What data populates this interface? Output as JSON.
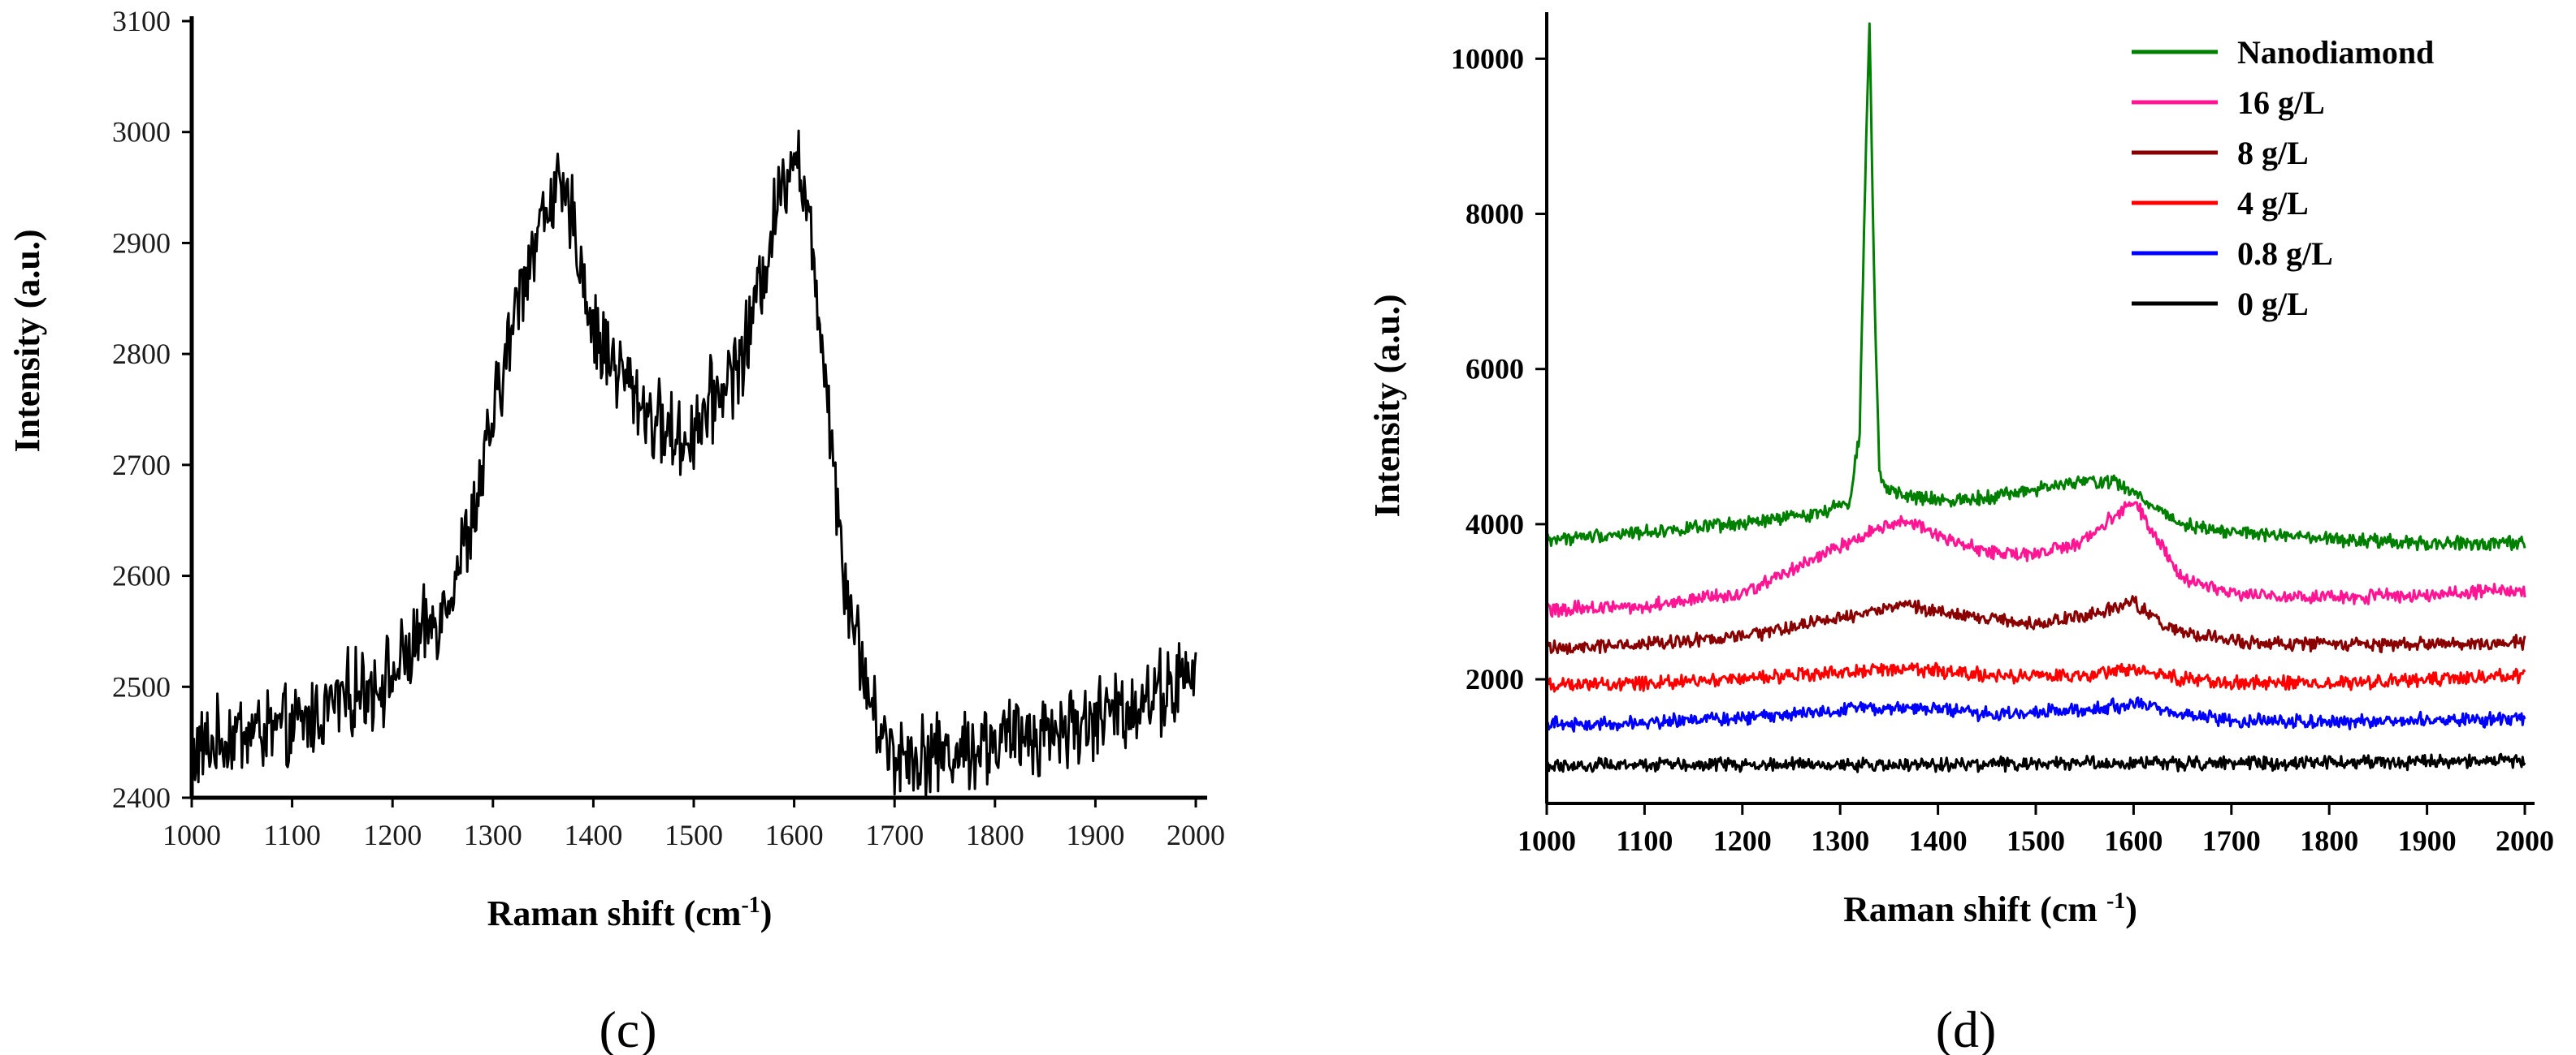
{
  "chart_data": [
    {
      "type": "line",
      "panel_label": "(c)",
      "xlabel_main": "Raman  shift (cm",
      "xlabel_sup": "-1",
      "xlabel_close": ")",
      "ylabel": "Intensity (a.u.)",
      "xlim": [
        1000,
        2000
      ],
      "ylim": [
        2400,
        3100
      ],
      "xticks": [
        1000,
        1100,
        1200,
        1300,
        1400,
        1500,
        1600,
        1700,
        1800,
        1900,
        2000
      ],
      "yticks": [
        2400,
        2500,
        2600,
        2700,
        2800,
        2900,
        3000,
        3100
      ],
      "series": [
        {
          "name": "spectrum",
          "color": "#000000",
          "x": [
            1000,
            1050,
            1100,
            1150,
            1200,
            1250,
            1280,
            1300,
            1330,
            1360,
            1380,
            1400,
            1430,
            1460,
            1490,
            1520,
            1550,
            1570,
            1590,
            1600,
            1610,
            1630,
            1650,
            1680,
            1700,
            1750,
            1800,
            1850,
            1900,
            1950,
            2000
          ],
          "y": [
            2440,
            2460,
            2460,
            2490,
            2510,
            2570,
            2650,
            2740,
            2870,
            2950,
            2920,
            2820,
            2780,
            2740,
            2720,
            2760,
            2800,
            2880,
            2960,
            2990,
            2950,
            2800,
            2600,
            2470,
            2440,
            2440,
            2450,
            2460,
            2470,
            2490,
            2510
          ]
        }
      ]
    },
    {
      "type": "line",
      "panel_label": "(d)",
      "xlabel_main": "Raman shift  (cm ",
      "xlabel_sup": "-1",
      "xlabel_close": ")",
      "ylabel": "Intensity (a.u.)",
      "xlim": [
        1000,
        2000
      ],
      "ylim": [
        400,
        10600
      ],
      "xticks": [
        1000,
        1100,
        1200,
        1300,
        1400,
        1500,
        1600,
        1700,
        1800,
        1900,
        2000
      ],
      "yticks": [
        2000,
        4000,
        6000,
        8000,
        10000
      ],
      "legend_position": "top-right",
      "series": [
        {
          "name": "Nanodiamond",
          "color": "#008000",
          "x": [
            1000,
            1100,
            1200,
            1280,
            1310,
            1320,
            1325,
            1330,
            1335,
            1340,
            1350,
            1400,
            1450,
            1500,
            1550,
            1580,
            1600,
            1650,
            1700,
            1800,
            1900,
            2000
          ],
          "y": [
            3800,
            3900,
            4000,
            4150,
            4300,
            5200,
            8200,
            10500,
            7000,
            4700,
            4400,
            4300,
            4350,
            4450,
            4550,
            4550,
            4400,
            4000,
            3900,
            3800,
            3750,
            3750
          ]
        },
        {
          "name": "16 g/L",
          "color": "#ff1493",
          "x": [
            1000,
            1100,
            1200,
            1300,
            1350,
            1370,
            1400,
            1450,
            1500,
            1550,
            1580,
            1600,
            1620,
            1650,
            1700,
            1800,
            1900,
            2000
          ],
          "y": [
            2900,
            2950,
            3100,
            3700,
            4000,
            4050,
            3850,
            3650,
            3600,
            3800,
            4100,
            4300,
            3900,
            3300,
            3100,
            3050,
            3100,
            3150
          ]
        },
        {
          "name": "8 g/L",
          "color": "#8b0000",
          "x": [
            1000,
            1100,
            1200,
            1300,
            1370,
            1420,
            1500,
            1560,
            1600,
            1630,
            1700,
            1800,
            1900,
            2000
          ],
          "y": [
            2400,
            2450,
            2550,
            2800,
            2950,
            2850,
            2700,
            2850,
            3000,
            2700,
            2480,
            2450,
            2450,
            2480
          ]
        },
        {
          "name": "4 g/L",
          "color": "#ff0000",
          "x": [
            1000,
            1100,
            1200,
            1300,
            1370,
            1450,
            1550,
            1600,
            1650,
            1700,
            1800,
            1900,
            2000
          ],
          "y": [
            1920,
            1950,
            2000,
            2100,
            2150,
            2050,
            2050,
            2150,
            2000,
            1950,
            1950,
            2000,
            2050
          ]
        },
        {
          "name": "0.8 g/L",
          "color": "#0000ff",
          "x": [
            1000,
            1100,
            1200,
            1300,
            1370,
            1450,
            1550,
            1610,
            1650,
            1700,
            1800,
            1900,
            2000
          ],
          "y": [
            1420,
            1450,
            1500,
            1600,
            1650,
            1550,
            1600,
            1700,
            1550,
            1480,
            1450,
            1480,
            1480
          ]
        },
        {
          "name": "0 g/L",
          "color": "#000000",
          "x": [
            1000,
            1200,
            1400,
            1600,
            1800,
            2000
          ],
          "y": [
            900,
            900,
            900,
            920,
            920,
            950
          ]
        }
      ]
    }
  ]
}
